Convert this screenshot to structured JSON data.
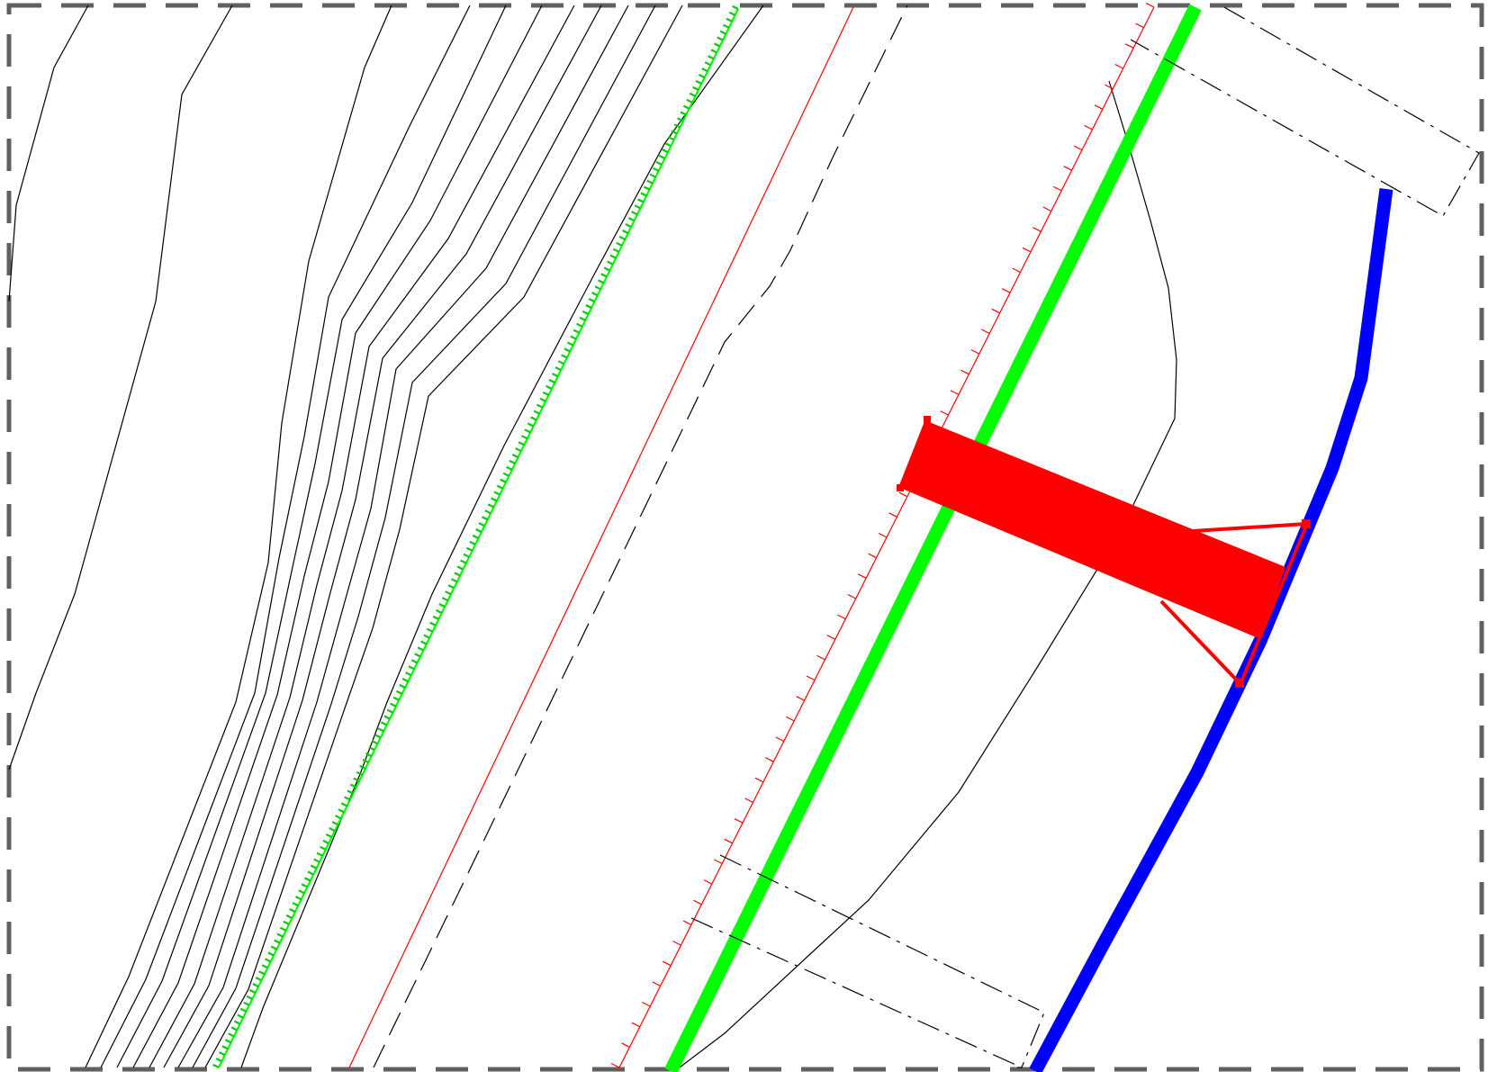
{
  "drawing": {
    "background": "#ffffff",
    "colors": {
      "frame": "#606060",
      "contour": "#000000",
      "green_line": "#00ff00",
      "green_hatch": "#00cc00",
      "red_line": "#ff0000",
      "red_block": "#ff0000",
      "blue_line": "#0000ff",
      "dashed_line": "#000000",
      "dashdot_line": "#000000"
    }
  }
}
